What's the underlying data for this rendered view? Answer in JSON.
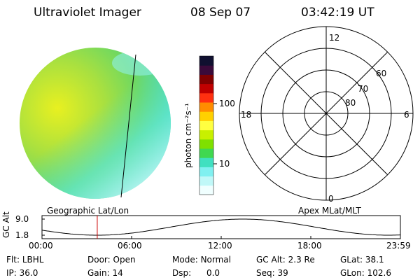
{
  "header": {
    "title": "Ultraviolet Imager",
    "date": "08 Sep 07",
    "time": "03:42:19 UT"
  },
  "colorbar": {
    "unit_label": "photon cm⁻²s⁻¹",
    "ticks": [
      "100",
      "10"
    ],
    "colors": [
      "#101030",
      "#3a0a3a",
      "#800000",
      "#c00000",
      "#ff3010",
      "#ff8c00",
      "#ffd000",
      "#ffff40",
      "#c8f000",
      "#7fe000",
      "#40d850",
      "#40e0c0",
      "#80f0f0",
      "#c0f8f8",
      "#f0ffff"
    ]
  },
  "polar_plot": {
    "mlt_labels": {
      "top": "12",
      "left": "18",
      "right": "6",
      "bottom": "0"
    },
    "lat_labels": [
      "60",
      "70",
      "80"
    ]
  },
  "timeline": {
    "ylabel": "GC Alt",
    "yticks": [
      "9.0",
      "1.8"
    ],
    "left_caption": "Geographic Lat/Lon",
    "right_caption": "Apex MLat/MLT",
    "xticks": [
      "00:00",
      "06:00",
      "12:00",
      "18:00",
      "23:59"
    ],
    "marker_hour": 3.7,
    "marker_color": "#cc0000"
  },
  "status": {
    "row1": [
      {
        "label": "Flt:",
        "value": "LBHL"
      },
      {
        "label": "Door:",
        "value": "Open"
      },
      {
        "label": "Mode:",
        "value": "Normal"
      },
      {
        "label": "GC Alt:",
        "value": "2.3 Re"
      },
      {
        "label": "GLat:",
        "value": "38.1"
      }
    ],
    "row2": [
      {
        "label": "IP:",
        "value": "36.0"
      },
      {
        "label": "Gain:",
        "value": "14"
      },
      {
        "label": "Dsp:",
        "value": "0.0"
      },
      {
        "label": "Seq:",
        "value": "39"
      },
      {
        "label": "GLon:",
        "value": "102.6"
      }
    ]
  }
}
